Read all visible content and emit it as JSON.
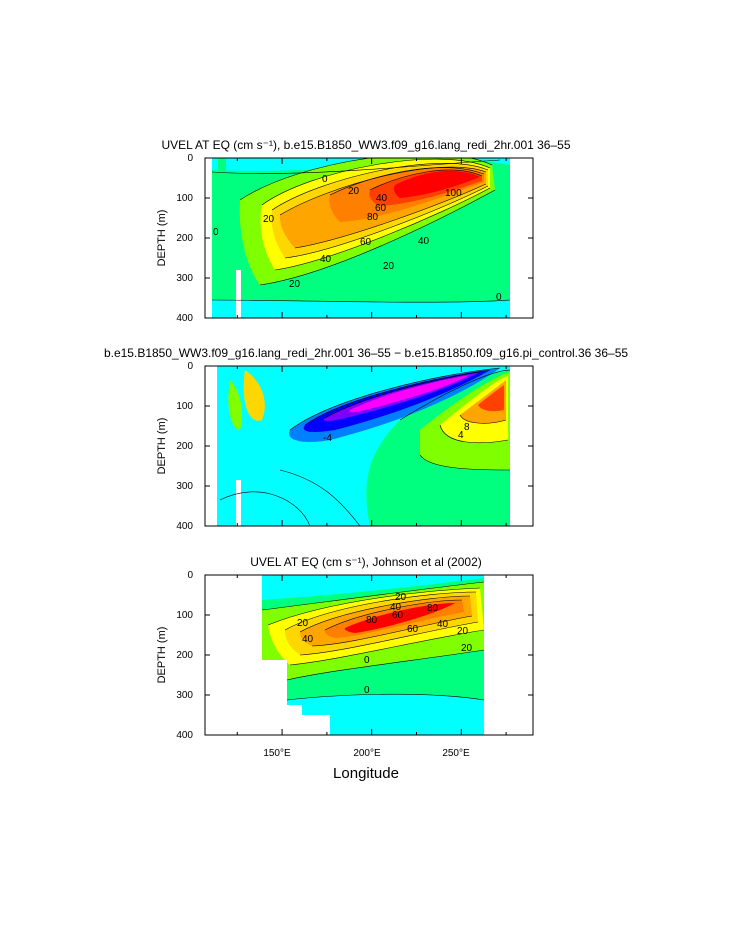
{
  "chart_data": [
    {
      "type": "heatmap",
      "panel": "top",
      "title": "UVEL AT EQ (cm s⁻¹), b.e15.B1850_WW3.f09_g16.lang_redi_2hr.001 ‌36–55‌",
      "ylabel": "DEPTH (m)",
      "yticks": [
        "0",
        "100",
        "200",
        "300",
        "400"
      ],
      "ylim": [
        400,
        0
      ],
      "xlim": [
        107,
        290
      ],
      "contour_labels": [
        "0",
        "20",
        "40",
        "60",
        "80",
        "100",
        "60",
        "40",
        "20",
        "40",
        "20",
        "0",
        "0",
        "20"
      ],
      "core": {
        "lon": 235,
        "depth": 115,
        "max_value": 100
      },
      "colors": [
        "#00ffff",
        "#00ff7f",
        "#80ff00",
        "#ffff00",
        "#ffd700",
        "#ffa500",
        "#ff7f00",
        "#ff4000",
        "#ff0000"
      ]
    },
    {
      "type": "heatmap",
      "panel": "middle",
      "title": "b.e15.B1850_WW3.f09_g16.lang_redi_2hr.001 ‌36–55‌ − b.e15.B1850.f09_g16.pi_control.36 ‌36–55‌",
      "ylabel": "DEPTH (m)",
      "yticks": [
        "0",
        "100",
        "200",
        "300",
        "400"
      ],
      "ylim": [
        400,
        0
      ],
      "xlim": [
        107,
        290
      ],
      "contour_labels": [
        "4",
        "8",
        "-4"
      ],
      "cores": [
        {
          "lon": 222,
          "depth": 85,
          "sign": "negative"
        },
        {
          "lon": 270,
          "depth": 95,
          "sign": "positive"
        }
      ],
      "colors": [
        "#ff00ff",
        "#8000ff",
        "#0000ff",
        "#0080ff",
        "#00ffff",
        "#00ff7f",
        "#80ff00",
        "#ffff00",
        "#ffa500",
        "#ff4000"
      ]
    },
    {
      "type": "heatmap",
      "panel": "bottom",
      "title": "UVEL AT EQ (cm s⁻¹), Johnson et al (2002)",
      "ylabel": "DEPTH (m)",
      "xlabel": "Longitude",
      "xticks": [
        "150°E",
        "200°E",
        "250°E"
      ],
      "xtick_values": [
        150,
        200,
        250
      ],
      "yticks": [
        "0",
        "100",
        "200",
        "300",
        "400"
      ],
      "ylim": [
        400,
        0
      ],
      "xlim": [
        107,
        290
      ],
      "data_extent": [
        143,
        265
      ],
      "contour_labels": [
        "20",
        "40",
        "60",
        "80",
        "80",
        "60",
        "40",
        "20",
        "20",
        "40",
        "0",
        "0",
        "20"
      ],
      "core": {
        "lon": 225,
        "depth": 120,
        "max_value": 80
      },
      "colors": [
        "#00ffff",
        "#00ff7f",
        "#80ff00",
        "#ffff00",
        "#ffd700",
        "#ffa500",
        "#ff7f00",
        "#ff4000",
        "#ff0000"
      ]
    }
  ]
}
